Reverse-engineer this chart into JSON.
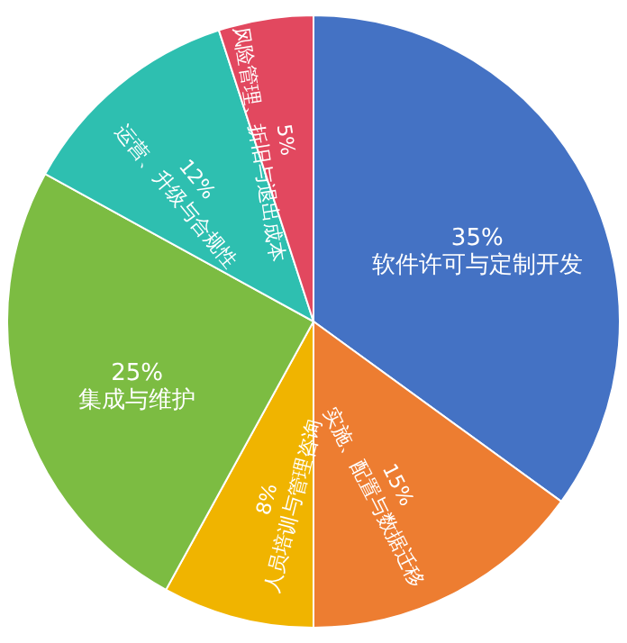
{
  "chart_data": {
    "type": "pie",
    "categories": [
      "软件许可与定制开发",
      "实施、配置与数据迁移",
      "人员培训与管理咨询",
      "集成与维护",
      "运营、升级与合规性",
      "风险管理、折旧与退出成本"
    ],
    "values": [
      35,
      15,
      8,
      25,
      12,
      5
    ],
    "value_labels": [
      "35%",
      "15%",
      "8%",
      "25%",
      "12%",
      "5%"
    ],
    "colors": [
      "#4472c4",
      "#ed7d31",
      "#f0b400",
      "#7cbc42",
      "#2ebfb0",
      "#e2485f"
    ]
  }
}
